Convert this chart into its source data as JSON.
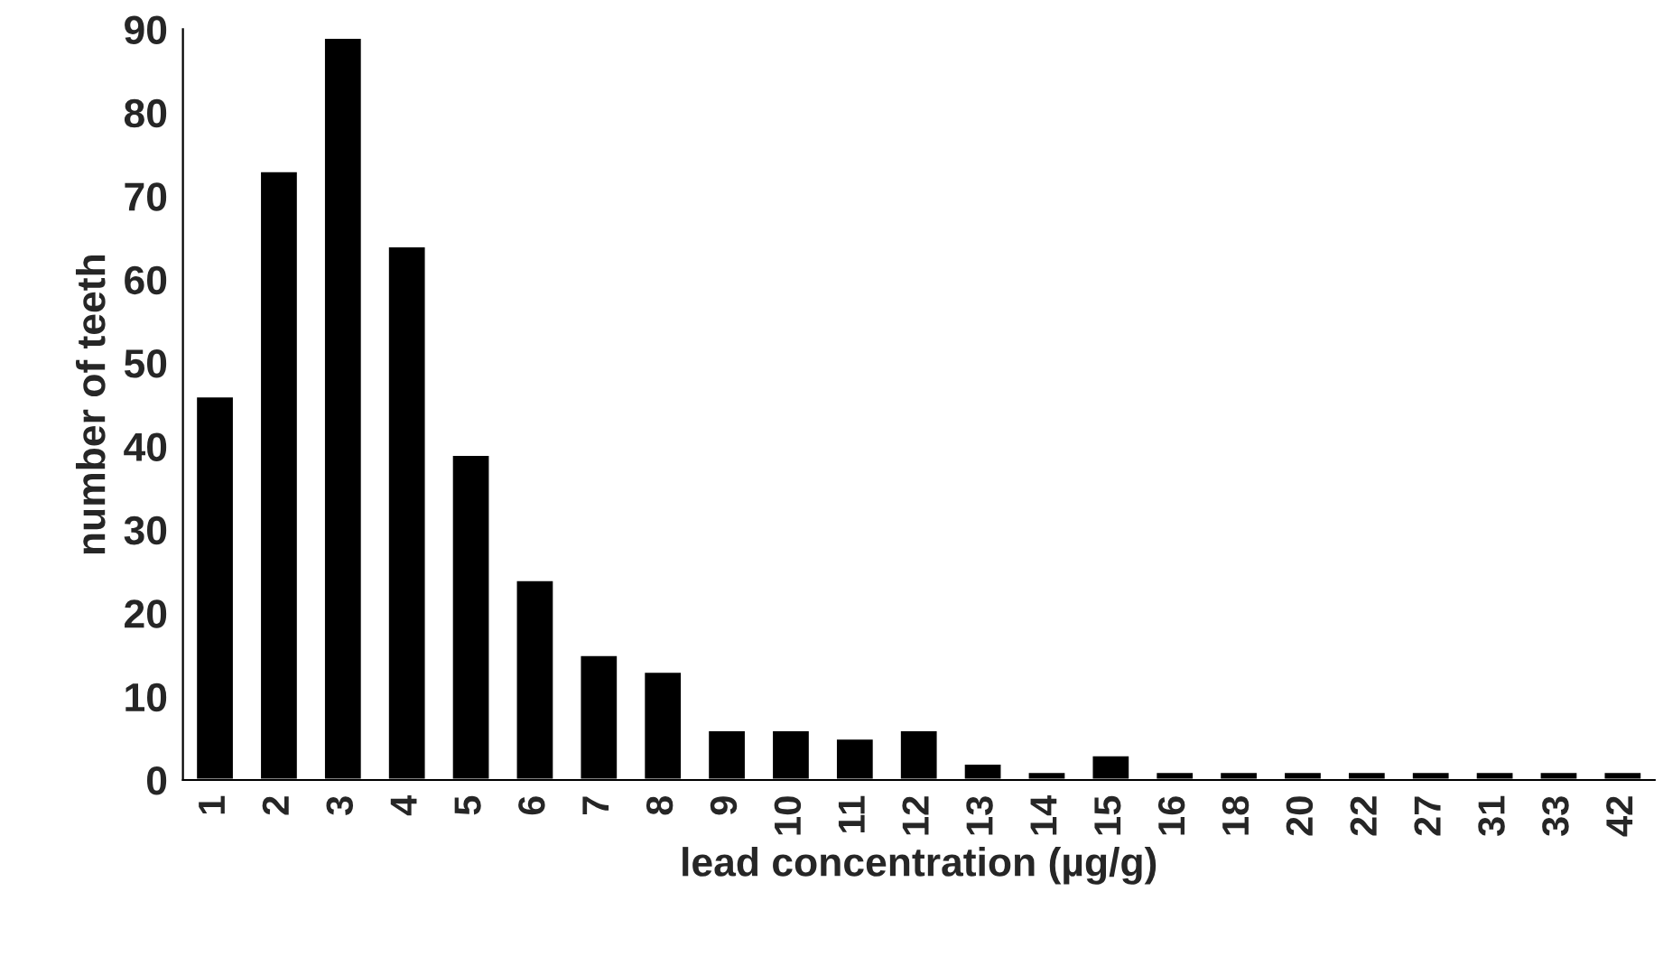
{
  "chart_data": {
    "type": "bar",
    "xlabel": "lead concentration (µg/g)",
    "ylabel": "number of teeth",
    "categories": [
      "1",
      "2",
      "3",
      "4",
      "5",
      "6",
      "7",
      "8",
      "9",
      "10",
      "11",
      "12",
      "13",
      "14",
      "15",
      "16",
      "18",
      "20",
      "22",
      "27",
      "31",
      "33",
      "42"
    ],
    "values": [
      46,
      73,
      89,
      64,
      39,
      24,
      15,
      13,
      6,
      6,
      5,
      6,
      2,
      1,
      3,
      1,
      1,
      1,
      1,
      1,
      1,
      1,
      1
    ],
    "color": "#000000",
    "ylim": [
      0,
      90
    ],
    "yticks": [
      0,
      10,
      20,
      30,
      40,
      50,
      60,
      70,
      80,
      90
    ],
    "grid": false
  }
}
